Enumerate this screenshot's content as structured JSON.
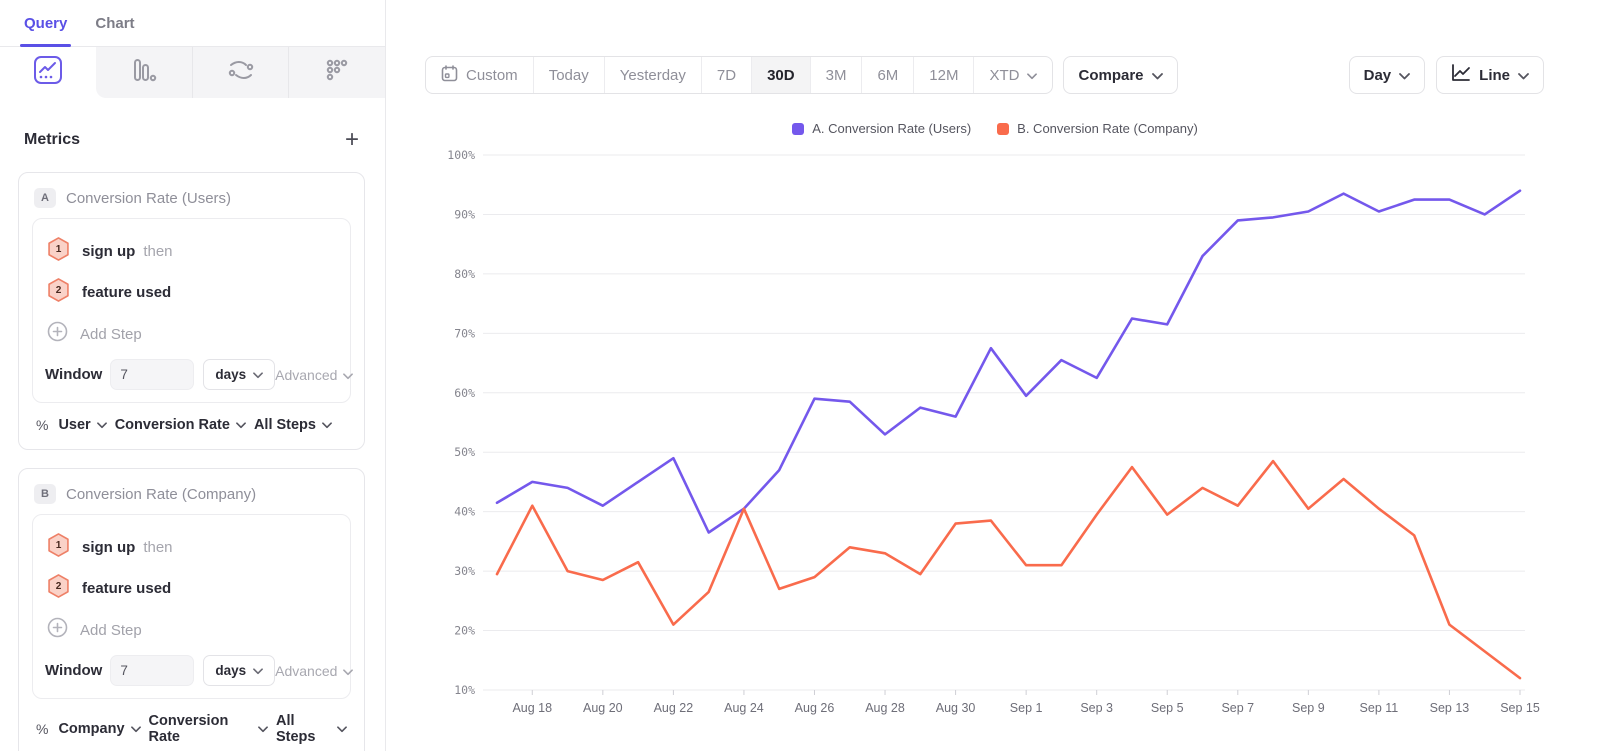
{
  "sidebar": {
    "tabs": [
      {
        "label": "Query",
        "active": true
      },
      {
        "label": "Chart",
        "active": false
      }
    ],
    "viz_tabs": [
      "insights",
      "funnels",
      "flows",
      "retention"
    ],
    "metrics_header": {
      "title": "Metrics",
      "add_label": "+"
    },
    "metrics": [
      {
        "letter": "A",
        "title": "Conversion Rate (Users)",
        "steps": [
          {
            "num": "1",
            "name": "sign up",
            "suffix": "then"
          },
          {
            "num": "2",
            "name": "feature used",
            "suffix": ""
          }
        ],
        "add_step_label": "Add Step",
        "window": {
          "label": "Window",
          "value": "7",
          "unit": "days",
          "advanced_label": "Advanced"
        },
        "measure": {
          "prefix": "%",
          "entity": "User",
          "metric": "Conversion Rate",
          "scope": "All Steps"
        }
      },
      {
        "letter": "B",
        "title": "Conversion Rate (Company)",
        "steps": [
          {
            "num": "1",
            "name": "sign up",
            "suffix": "then"
          },
          {
            "num": "2",
            "name": "feature used",
            "suffix": ""
          }
        ],
        "add_step_label": "Add Step",
        "window": {
          "label": "Window",
          "value": "7",
          "unit": "days",
          "advanced_label": "Advanced"
        },
        "measure": {
          "prefix": "%",
          "entity": "Company",
          "metric": "Conversion Rate",
          "scope": "All Steps"
        }
      }
    ]
  },
  "toolbar": {
    "date_ranges": [
      {
        "label": "Custom",
        "icon": "calendar",
        "active": false
      },
      {
        "label": "Today",
        "active": false
      },
      {
        "label": "Yesterday",
        "active": false
      },
      {
        "label": "7D",
        "active": false
      },
      {
        "label": "30D",
        "active": true
      },
      {
        "label": "3M",
        "active": false
      },
      {
        "label": "6M",
        "active": false
      },
      {
        "label": "12M",
        "active": false
      },
      {
        "label": "XTD",
        "chevron": true,
        "active": false
      }
    ],
    "compare_label": "Compare",
    "granularity_label": "Day",
    "chart_type_label": "Line"
  },
  "legend": [
    {
      "label": "A. Conversion Rate (Users)",
      "color": "#7458EC"
    },
    {
      "label": "B. Conversion Rate (Company)",
      "color": "#F96B4C"
    }
  ],
  "chart_data": {
    "type": "line",
    "title": "",
    "xlabel": "",
    "ylabel": "",
    "ylim": [
      10,
      100
    ],
    "grid": true,
    "legend_position": "top-center",
    "y_tick_labels": [
      "10%",
      "20%",
      "30%",
      "40%",
      "50%",
      "60%",
      "70%",
      "80%",
      "90%",
      "100%"
    ],
    "x": [
      "Aug 17",
      "Aug 18",
      "Aug 19",
      "Aug 20",
      "Aug 21",
      "Aug 22",
      "Aug 23",
      "Aug 24",
      "Aug 25",
      "Aug 26",
      "Aug 27",
      "Aug 28",
      "Aug 29",
      "Aug 30",
      "Aug 31",
      "Sep 1",
      "Sep 2",
      "Sep 3",
      "Sep 4",
      "Sep 5",
      "Sep 6",
      "Sep 7",
      "Sep 8",
      "Sep 9",
      "Sep 10",
      "Sep 11",
      "Sep 12",
      "Sep 13",
      "Sep 14",
      "Sep 15"
    ],
    "x_tick_labels": [
      "Aug 18",
      "Aug 20",
      "Aug 22",
      "Aug 24",
      "Aug 26",
      "Aug 28",
      "Aug 30",
      "Sep 1",
      "Sep 3",
      "Sep 5",
      "Sep 7",
      "Sep 9",
      "Sep 11",
      "Sep 13",
      "Sep 15"
    ],
    "series": [
      {
        "name": "A. Conversion Rate (Users)",
        "color": "#7458EC",
        "values": [
          41.5,
          45,
          44,
          41,
          45,
          49,
          36.5,
          40.5,
          47,
          59,
          58.5,
          53,
          57.5,
          56,
          67.5,
          59.5,
          65.5,
          62.5,
          72.5,
          71.5,
          83,
          89,
          89.5,
          90.5,
          93.5,
          90.5,
          92.5,
          92.5,
          90,
          94
        ]
      },
      {
        "name": "B. Conversion Rate (Company)",
        "color": "#F96B4C",
        "values": [
          29.5,
          41,
          30,
          28.5,
          31.5,
          21,
          26.5,
          40.5,
          27,
          29,
          34,
          33,
          29.5,
          38,
          38.5,
          31,
          31,
          39.5,
          47.5,
          39.5,
          44,
          41,
          48.5,
          40.5,
          45.5,
          40.5,
          36,
          21,
          16.5,
          12
        ]
      }
    ]
  }
}
